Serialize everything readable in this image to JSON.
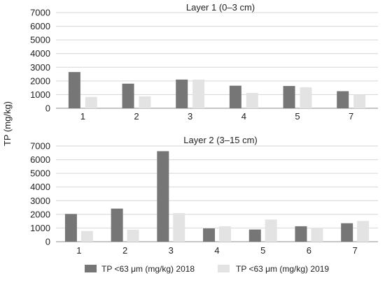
{
  "ylabel": "TP (mg/kg)",
  "colors": {
    "s2018": "#767676",
    "s2019": "#e3e3e3",
    "grid": "#d6d6d6",
    "axis": "#8c8c8c"
  },
  "legend": [
    {
      "label": "TP <63 μm (mg/kg) 2018",
      "color": "#767676"
    },
    {
      "label": "TP <63 μm (mg/kg) 2019",
      "color": "#e3e3e3"
    }
  ],
  "chart_data": [
    {
      "type": "bar",
      "title": "Layer 1 (0–3 cm)",
      "categories": [
        "1",
        "2",
        "3",
        "4",
        "5",
        "7"
      ],
      "ylim": [
        0,
        7000
      ],
      "yticks": [
        0,
        1000,
        2000,
        3000,
        4000,
        5000,
        6000,
        7000
      ],
      "grid": true,
      "series": [
        {
          "name": "TP <63 μm (mg/kg) 2018",
          "values": [
            2650,
            1800,
            2100,
            1650,
            1630,
            1250
          ]
        },
        {
          "name": "TP <63 μm (mg/kg) 2019",
          "values": [
            830,
            870,
            2100,
            1120,
            1530,
            1000
          ]
        }
      ]
    },
    {
      "type": "bar",
      "title": "Layer 2 (3–15 cm)",
      "categories": [
        "1",
        "2",
        "3",
        "4",
        "5",
        "6",
        "7"
      ],
      "ylim": [
        0,
        7000
      ],
      "yticks": [
        0,
        1000,
        2000,
        3000,
        4000,
        5000,
        6000,
        7000
      ],
      "grid": true,
      "series": [
        {
          "name": "TP <63 μm (mg/kg) 2018",
          "values": [
            2030,
            2420,
            6620,
            970,
            890,
            1130,
            1350
          ]
        },
        {
          "name": "TP <63 μm (mg/kg) 2019",
          "values": [
            780,
            880,
            2090,
            1130,
            1620,
            1020,
            1520
          ]
        }
      ]
    }
  ]
}
